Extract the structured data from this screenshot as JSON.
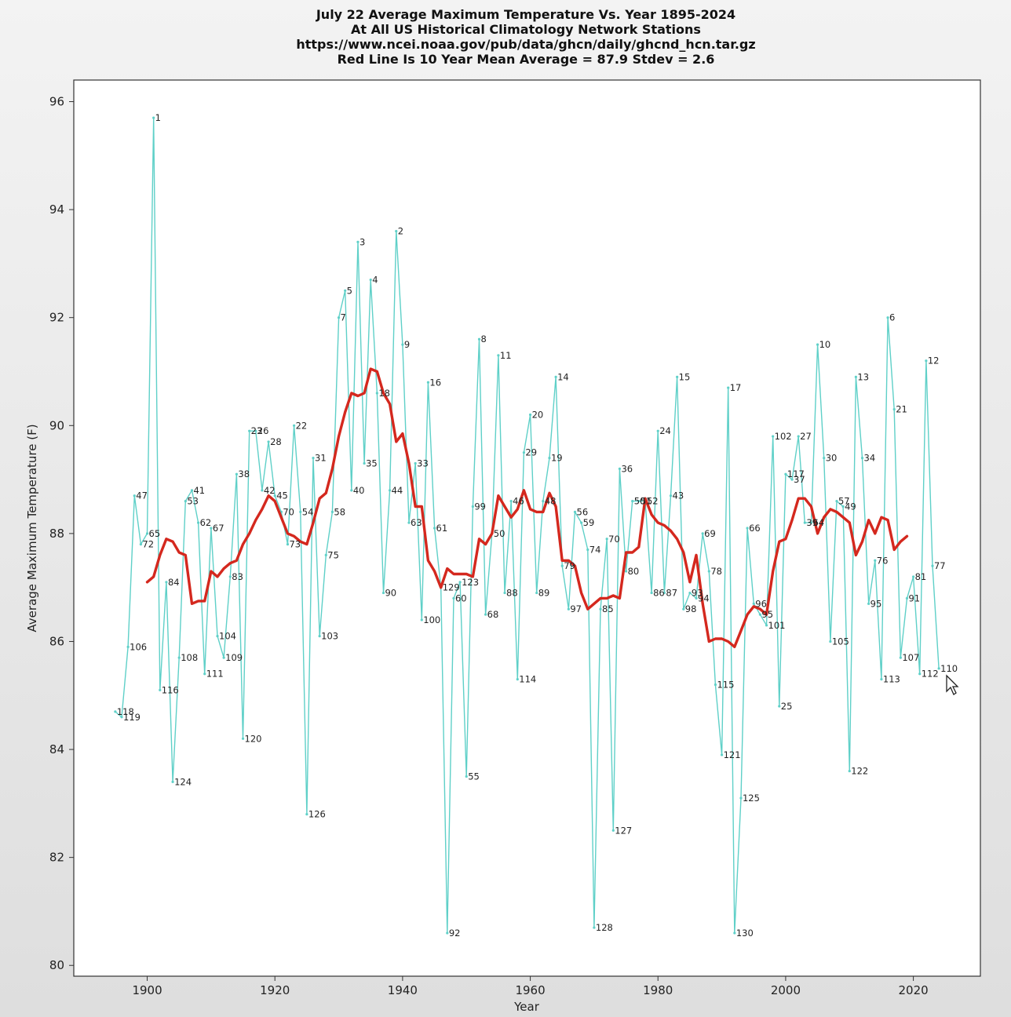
{
  "chart_data": {
    "type": "line",
    "title_lines": [
      "July 22 Average Maximum Temperature Vs. Year 1895-2024",
      "At All US Historical Climatology Network Stations",
      "https://www.ncei.noaa.gov/pub/data/ghcn/daily/ghcnd_hcn.tar.gz",
      "Red Line Is 10 Year Mean  Average = 87.9 Stdev = 2.6"
    ],
    "xlabel": "Year",
    "ylabel": "Average Maximum Temperature (F)",
    "xlim": [
      1888.5,
      2030.5
    ],
    "ylim": [
      79.8,
      96.4
    ],
    "x_ticks": [
      1900,
      1920,
      1940,
      1960,
      1980,
      2000,
      2020
    ],
    "y_ticks": [
      80,
      82,
      84,
      86,
      88,
      90,
      92,
      94,
      96
    ],
    "grid": false,
    "colors": {
      "raw": "#5fd0c8",
      "mean": "#d4281e",
      "background": "#ffffff"
    },
    "series": [
      {
        "x": [
          1895,
          1896,
          1897,
          1898,
          1899,
          1900,
          1901,
          1902,
          1903,
          1904,
          1905,
          1906,
          1907,
          1908,
          1909,
          1910,
          1911,
          1912,
          1913,
          1914,
          1915,
          1916,
          1917,
          1918,
          1919,
          1920,
          1921,
          1922,
          1923,
          1924,
          1925,
          1926,
          1927,
          1928,
          1929,
          1930,
          1931,
          1932,
          1933,
          1934,
          1935,
          1936,
          1937,
          1938,
          1939,
          1940,
          1941,
          1942,
          1943,
          1944,
          1945,
          1946,
          1947,
          1948,
          1949,
          1950,
          1951,
          1952,
          1953,
          1954,
          1955,
          1956,
          1957,
          1958,
          1959,
          1960,
          1961,
          1962,
          1963,
          1964,
          1965,
          1966,
          1967,
          1968,
          1969,
          1970,
          1971,
          1972,
          1973,
          1974,
          1975,
          1976,
          1977,
          1978,
          1979,
          1980,
          1981,
          1982,
          1983,
          1984,
          1985,
          1986,
          1987,
          1988,
          1989,
          1990,
          1991,
          1992,
          1993,
          1994,
          1995,
          1996,
          1997,
          1998,
          1999,
          2000,
          2001,
          2002,
          2003,
          2004,
          2005,
          2006,
          2007,
          2008,
          2009,
          2010,
          2011,
          2012,
          2013,
          2014,
          2015,
          2016,
          2017,
          2018,
          2019,
          2020,
          2021,
          2022,
          2023,
          2024
        ],
        "values": [
          84.7,
          84.6,
          85.9,
          88.7,
          87.8,
          88.0,
          95.7,
          85.1,
          87.1,
          83.4,
          85.7,
          88.6,
          88.8,
          88.2,
          85.4,
          88.1,
          86.1,
          85.7,
          87.2,
          89.1,
          84.2,
          89.9,
          89.9,
          88.8,
          89.7,
          88.7,
          88.4,
          87.8,
          90.0,
          88.4,
          82.8,
          89.4,
          86.1,
          87.6,
          88.4,
          92.0,
          92.5,
          88.8,
          93.4,
          89.3,
          92.7,
          90.6,
          86.9,
          88.8,
          93.6,
          91.5,
          88.2,
          89.3,
          86.4,
          90.8,
          88.1,
          87.0,
          80.6,
          86.8,
          87.1,
          83.5,
          88.5,
          91.6,
          86.5,
          88.0,
          91.3,
          86.9,
          88.6,
          85.3,
          89.5,
          90.2,
          86.9,
          88.6,
          89.4,
          90.9,
          87.4,
          86.6,
          88.4,
          88.2,
          87.7,
          80.7,
          86.6,
          87.9,
          82.5,
          89.2,
          87.3,
          88.6,
          88.6,
          88.6,
          86.9,
          89.9,
          86.9,
          88.7,
          90.9,
          86.6,
          86.9,
          86.8,
          88.0,
          87.3,
          85.2,
          83.9,
          90.7,
          80.6,
          83.1,
          88.1,
          86.7,
          86.5,
          86.3,
          89.8,
          84.8,
          89.1,
          89.0,
          89.8,
          88.2,
          88.2,
          91.5,
          89.4,
          86.0,
          88.6,
          88.5,
          83.6,
          90.9,
          89.4,
          86.7,
          87.5,
          85.3,
          92.0,
          90.3,
          85.7,
          86.8,
          87.2,
          85.4,
          91.2,
          87.4,
          85.5
        ],
        "point_labels": [
          "118",
          "119",
          "106",
          "47",
          "72",
          "65",
          "1",
          "116",
          "84",
          "124",
          "108",
          "53",
          "41",
          "62",
          "111",
          "67",
          "104",
          "109",
          "83",
          "38",
          "120",
          "23",
          "26",
          "42",
          "28",
          "45",
          "70",
          "73",
          "22",
          "54",
          "126",
          "31",
          "103",
          "75",
          "58",
          "7",
          "5",
          "40",
          "3",
          "35",
          "4",
          "18",
          "90",
          "44",
          "2",
          "9",
          "63",
          "33",
          "100",
          "16",
          "61",
          "129",
          "92",
          "60",
          "123",
          "55",
          "99",
          "8",
          "68",
          "50",
          "11",
          "88",
          "46",
          "114",
          "29",
          "20",
          "89",
          "48",
          "19",
          "14",
          "79",
          "97",
          "56",
          "59",
          "74",
          "128",
          "85",
          "70",
          "127",
          "36",
          "80",
          "50",
          "51",
          "52",
          "86",
          "24",
          "87",
          "43",
          "15",
          "98",
          "93",
          "94",
          "69",
          "78",
          "115",
          "121",
          "17",
          "130",
          "125",
          "66",
          "96",
          "95",
          "101",
          "102",
          "25",
          "117",
          "37",
          "27",
          "39",
          "64",
          "10",
          "30",
          "105",
          "57",
          "49",
          "122",
          "13",
          "34",
          "95",
          "76",
          "113",
          "6",
          "21",
          "107",
          "91",
          "81",
          "112",
          "12",
          "77",
          "110"
        ]
      },
      {
        "x": [
          1900,
          1901,
          1902,
          1903,
          1904,
          1905,
          1906,
          1907,
          1908,
          1909,
          1910,
          1911,
          1912,
          1913,
          1914,
          1915,
          1916,
          1917,
          1918,
          1919,
          1920,
          1921,
          1922,
          1923,
          1924,
          1925,
          1926,
          1927,
          1928,
          1929,
          1930,
          1931,
          1932,
          1933,
          1934,
          1935,
          1936,
          1937,
          1938,
          1939,
          1940,
          1941,
          1942,
          1943,
          1944,
          1945,
          1946,
          1947,
          1948,
          1949,
          1950,
          1951,
          1952,
          1953,
          1954,
          1955,
          1956,
          1957,
          1958,
          1959,
          1960,
          1961,
          1962,
          1963,
          1964,
          1965,
          1966,
          1967,
          1968,
          1969,
          1970,
          1971,
          1972,
          1973,
          1974,
          1975,
          1976,
          1977,
          1978,
          1979,
          1980,
          1981,
          1982,
          1983,
          1984,
          1985,
          1986,
          1987,
          1988,
          1989,
          1990,
          1991,
          1992,
          1993,
          1994,
          1995,
          1996,
          1997,
          1998,
          1999,
          2000,
          2001,
          2002,
          2003,
          2004,
          2005,
          2006,
          2007,
          2008,
          2009,
          2010,
          2011,
          2012,
          2013,
          2014,
          2015,
          2016,
          2017,
          2018,
          2019
        ],
        "values": [
          87.1,
          87.2,
          87.6,
          87.9,
          87.85,
          87.65,
          87.6,
          86.7,
          86.75,
          86.75,
          87.3,
          87.2,
          87.35,
          87.45,
          87.5,
          87.8,
          88.0,
          88.25,
          88.45,
          88.7,
          88.6,
          88.3,
          88.0,
          87.95,
          87.85,
          87.8,
          88.2,
          88.65,
          88.75,
          89.2,
          89.8,
          90.25,
          90.6,
          90.55,
          90.6,
          91.05,
          91.0,
          90.6,
          90.4,
          89.7,
          89.85,
          89.3,
          88.5,
          88.5,
          87.5,
          87.3,
          87.0,
          87.35,
          87.25,
          87.25,
          87.25,
          87.2,
          87.9,
          87.8,
          88.0,
          88.7,
          88.5,
          88.3,
          88.45,
          88.8,
          88.45,
          88.4,
          88.4,
          88.75,
          88.5,
          87.5,
          87.5,
          87.4,
          86.9,
          86.6,
          86.7,
          86.8,
          86.8,
          86.85,
          86.8,
          87.65,
          87.65,
          87.75,
          88.65,
          88.35,
          88.2,
          88.15,
          88.05,
          87.9,
          87.65,
          87.1,
          87.6,
          86.7,
          86.0,
          86.05,
          86.05,
          86.0,
          85.9,
          86.2,
          86.5,
          86.65,
          86.6,
          86.5,
          87.3,
          87.85,
          87.9,
          88.25,
          88.65,
          88.65,
          88.5,
          88.0,
          88.3,
          88.45,
          88.4,
          88.3,
          88.2,
          87.6,
          87.85,
          88.25,
          88.0,
          88.3,
          88.25,
          87.7,
          87.85,
          87.95
        ]
      }
    ]
  },
  "cursor_icon": "mouse-pointer-icon"
}
